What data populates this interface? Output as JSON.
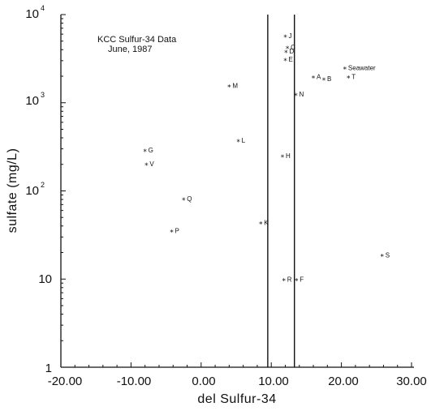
{
  "chart_data": {
    "type": "scatter",
    "title_lines": [
      "KCC Sulfur-34 Data",
      "June, 1987"
    ],
    "xlabel": "del Sulfur-34",
    "ylabel": "sulfate (mg/L)",
    "xlim": [
      -20,
      30
    ],
    "ylim": [
      1,
      10000
    ],
    "yscale": "log",
    "x_ticks": [
      "-20.00",
      "-10.00",
      "0.00",
      "10.00",
      "20.00",
      "30.00"
    ],
    "y_ticks": [
      {
        "base": "1",
        "exp": ""
      },
      {
        "base": "10",
        "exp": ""
      },
      {
        "base": "10",
        "exp": "2"
      },
      {
        "base": "10",
        "exp": "3"
      },
      {
        "base": "10",
        "exp": "4"
      }
    ],
    "vertical_lines": [
      9.5,
      13.3
    ],
    "points": [
      {
        "label": "J",
        "x": 12.0,
        "y": 5500
      },
      {
        "label": "C",
        "x": 12.3,
        "y": 4100
      },
      {
        "label": "D",
        "x": 12.1,
        "y": 3700
      },
      {
        "label": "E",
        "x": 12.0,
        "y": 3000
      },
      {
        "label": "Seawater",
        "x": 20.5,
        "y": 2400
      },
      {
        "label": "A",
        "x": 16.0,
        "y": 1900
      },
      {
        "label": "B",
        "x": 17.5,
        "y": 1800
      },
      {
        "label": "T",
        "x": 21.0,
        "y": 1900
      },
      {
        "label": "M",
        "x": 4.0,
        "y": 1500
      },
      {
        "label": "N",
        "x": 13.5,
        "y": 1200
      },
      {
        "label": "L",
        "x": 5.3,
        "y": 360
      },
      {
        "label": "G",
        "x": -8.0,
        "y": 280
      },
      {
        "label": "H",
        "x": 11.6,
        "y": 240
      },
      {
        "label": "V",
        "x": -7.8,
        "y": 195
      },
      {
        "label": "Q",
        "x": -2.5,
        "y": 78
      },
      {
        "label": "K",
        "x": 8.5,
        "y": 42
      },
      {
        "label": "P",
        "x": -4.2,
        "y": 34
      },
      {
        "label": "S",
        "x": 25.8,
        "y": 18
      },
      {
        "label": "R",
        "x": 11.8,
        "y": 9.5
      },
      {
        "label": "F",
        "x": 13.6,
        "y": 9.5
      }
    ]
  }
}
